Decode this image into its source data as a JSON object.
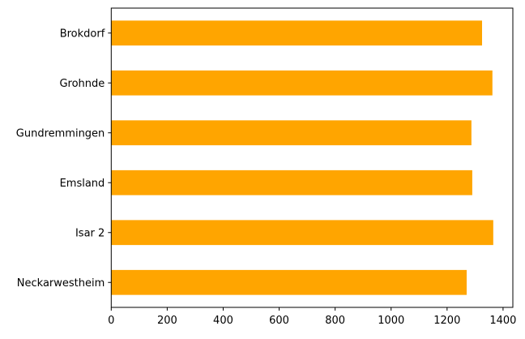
{
  "chart_data": {
    "type": "bar",
    "orientation": "horizontal",
    "categories": [
      "Neckarwestheim",
      "Isar 2",
      "Emsland",
      "Gundremmingen",
      "Grohnde",
      "Brokdorf"
    ],
    "values": [
      1270,
      1365,
      1290,
      1287,
      1362,
      1325
    ],
    "xlim": [
      0,
      1435
    ],
    "xticks": [
      "0",
      "200",
      "400",
      "600",
      "800",
      "1000",
      "1200",
      "1400"
    ],
    "title": "",
    "xlabel": "",
    "ylabel": "",
    "grid": false,
    "color": "#ffa500"
  }
}
